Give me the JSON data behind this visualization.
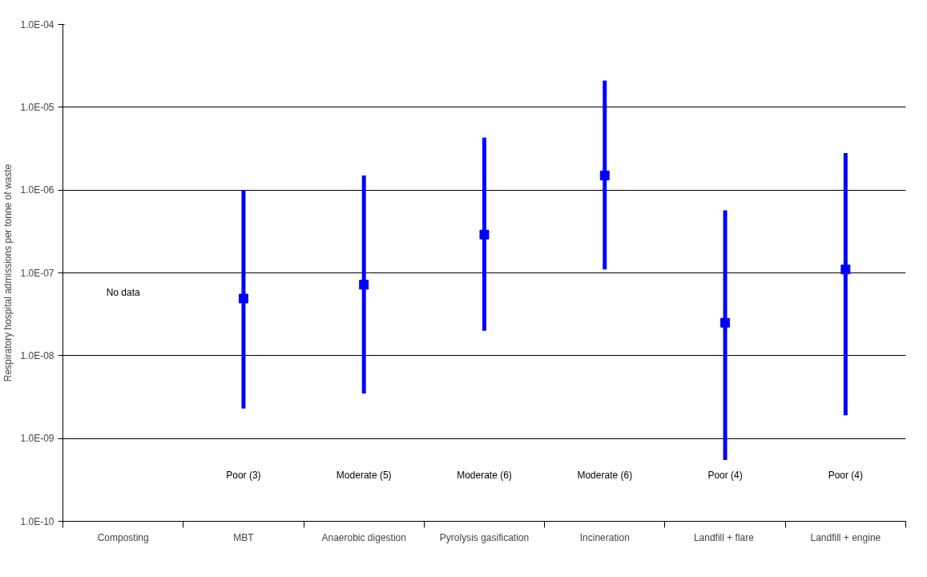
{
  "chart_data": {
    "type": "scatter",
    "ylabel": "Respiratory hospital admissions per tonne of waste",
    "categories": [
      "Composting",
      "MBT",
      "Anaerobic digestion",
      "Pyrolysis gasification",
      "Incineration",
      "Landfill  + flare",
      "Landfill + engine"
    ],
    "series": [
      {
        "color": "#0000ff",
        "values": [
          null,
          4.9e-08,
          7.2e-08,
          2.9e-07,
          1.5e-06,
          2.5e-08,
          1.1e-07
        ],
        "errors": [
          null,
          [
            2.3e-09,
            1e-06
          ],
          [
            3.5e-09,
            1.5e-06
          ],
          [
            2e-08,
            4.3e-06
          ],
          [
            1.1e-07,
            2.1e-05
          ],
          [
            5.5e-10,
            5.7e-07
          ],
          [
            1.9e-09,
            2.8e-06
          ]
        ]
      }
    ],
    "log": true,
    "ylim": [
      1e-10,
      0.0001
    ],
    "yticks": [
      {
        "value": 1e-10,
        "label": "1.0E-10"
      },
      {
        "value": 1e-09,
        "label": "1.0E-09"
      },
      {
        "value": 1e-08,
        "label": "1.0E-08"
      },
      {
        "value": 1e-07,
        "label": "1.0E-07"
      },
      {
        "value": 1e-06,
        "label": "1.0E-06"
      },
      {
        "value": 1e-05,
        "label": "1.0E-05"
      },
      {
        "value": 0.0001,
        "label": "1.0E-04"
      }
    ],
    "grid": "y",
    "marker": "square",
    "annotations": [
      "No data",
      "Poor (3)",
      "Moderate (5)",
      "Moderate (6)",
      "Moderate (6)",
      "Poor (4)",
      "Poor (4)"
    ]
  }
}
